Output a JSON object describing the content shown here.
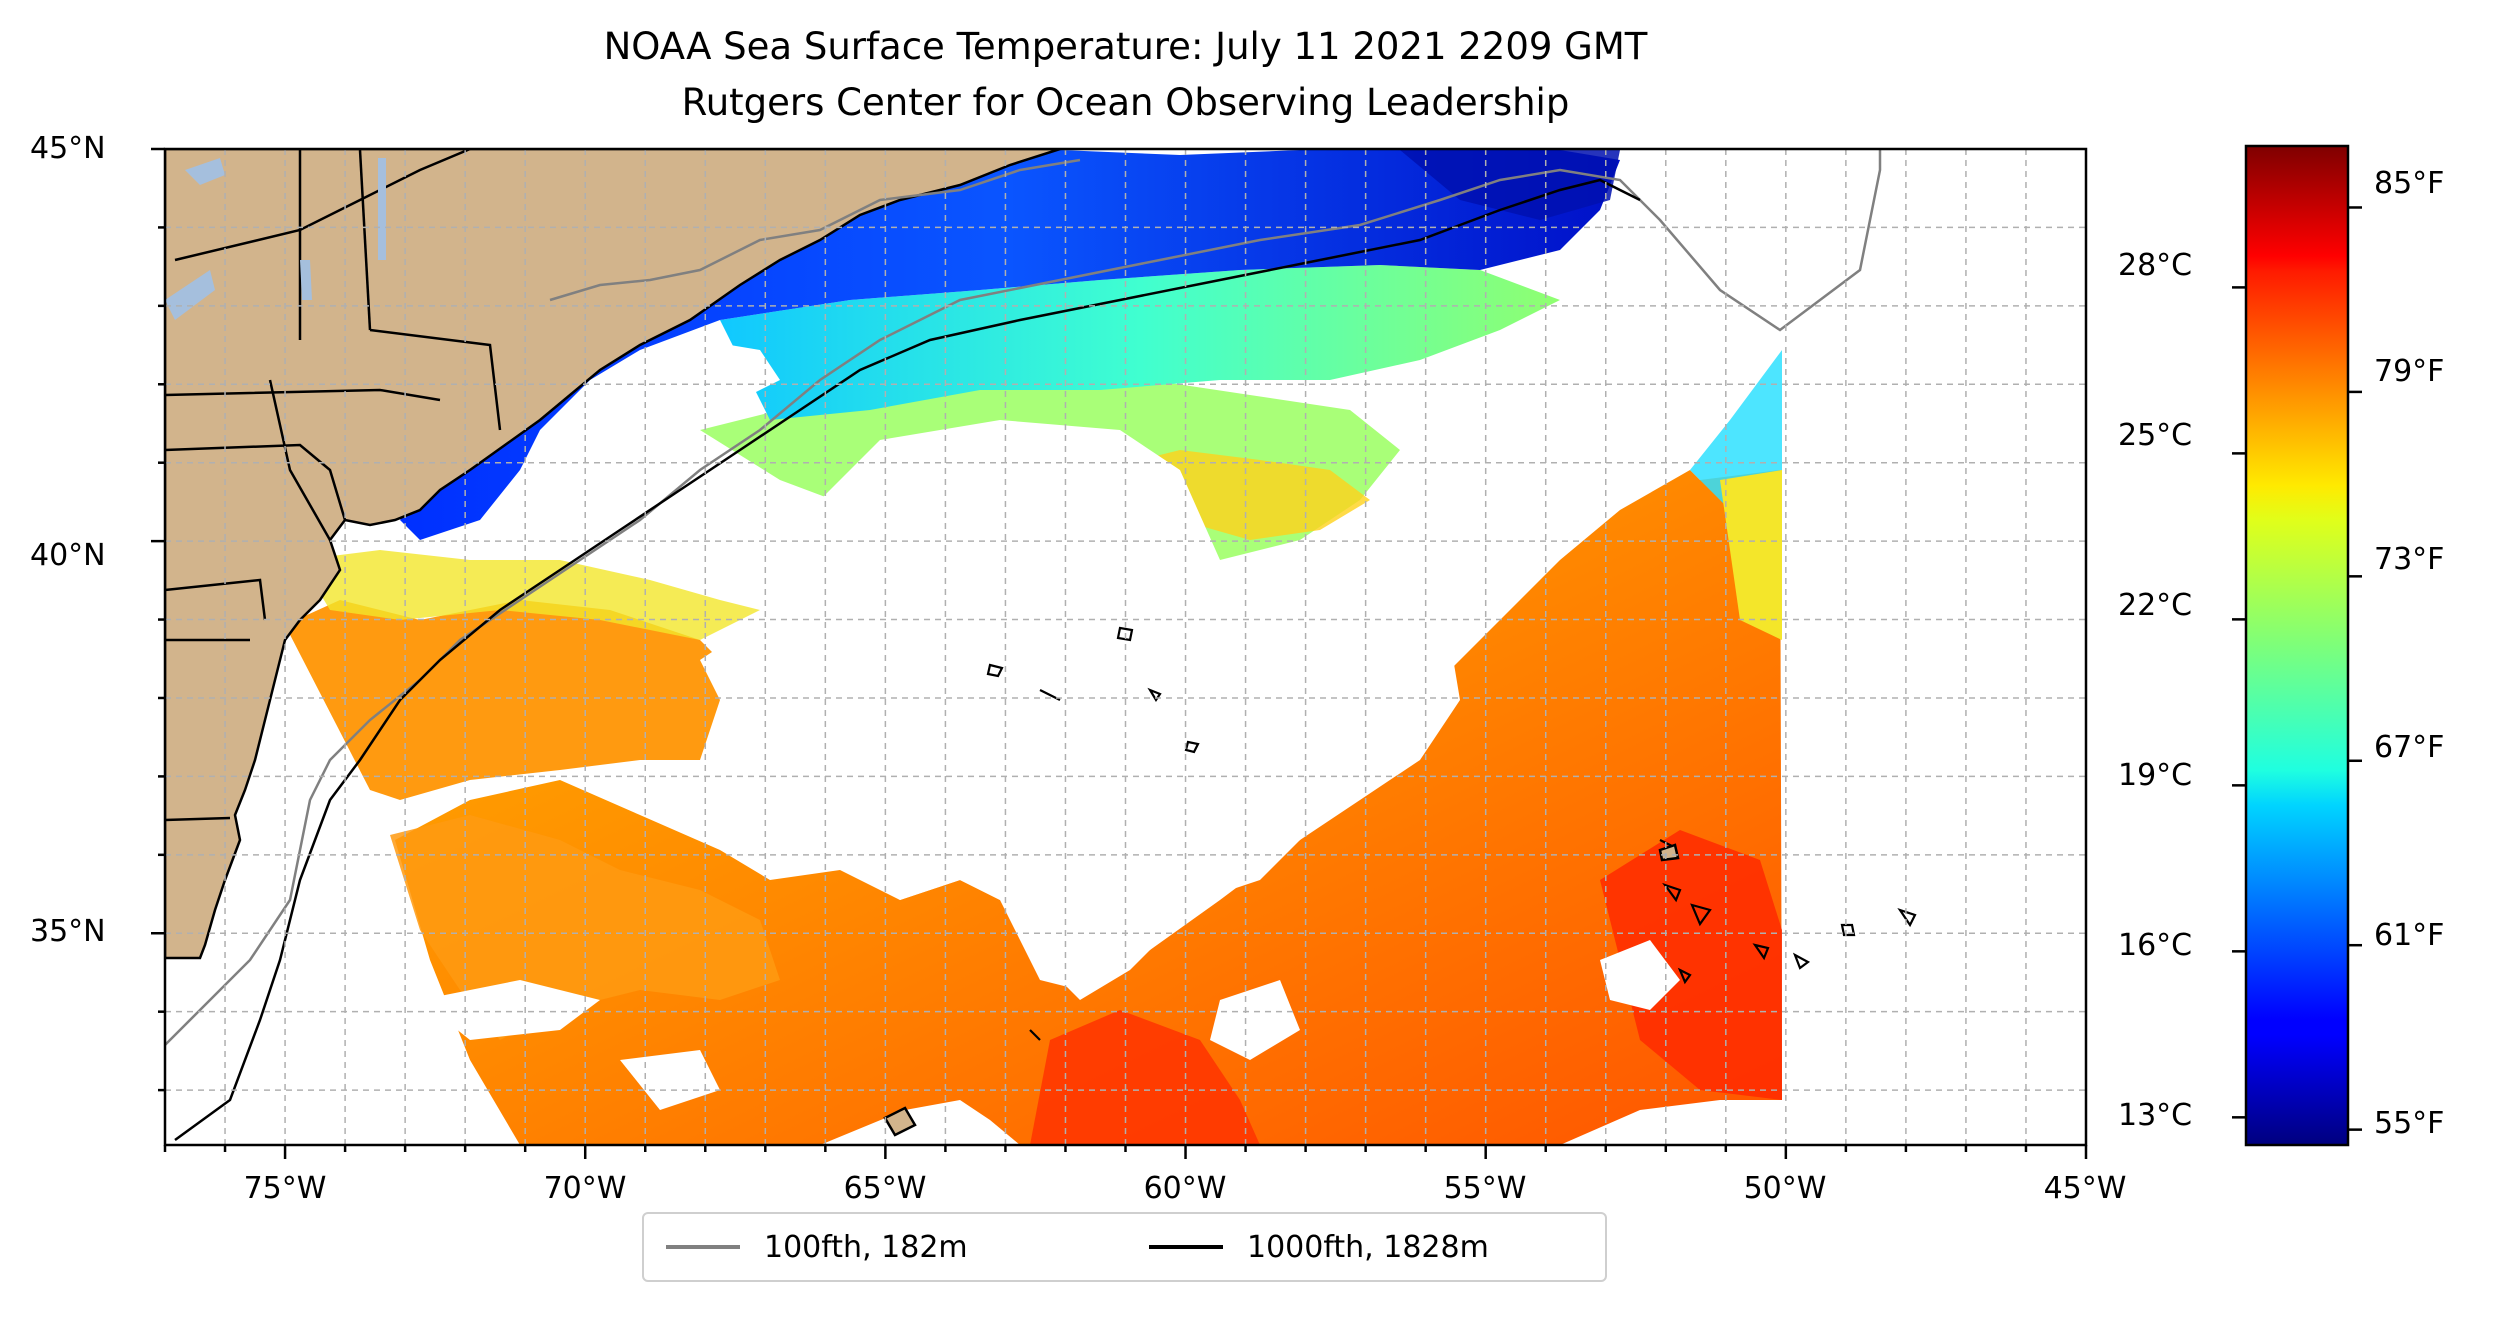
{
  "title": "NOAA Sea Surface Temperature: July 11 2021 2209 GMT",
  "subtitle": "Rutgers Center for Ocean Observing Leadership",
  "map": {
    "lon_range": [
      -77,
      -45
    ],
    "lat_range": [
      32.3,
      45
    ],
    "gridlines": true,
    "land_color": "#d2b48c",
    "lake_color": "#a5bfdd",
    "x_ticks": [
      "75°W",
      "70°W",
      "65°W",
      "60°W",
      "55°W",
      "50°W",
      "45°W"
    ],
    "y_ticks": [
      "45°N",
      "40°N",
      "35°N"
    ]
  },
  "colorbar": {
    "colormap": "jet",
    "celsius_ticks": [
      "28°C",
      "25°C",
      "22°C",
      "19°C",
      "16°C",
      "13°C"
    ],
    "fahrenheit_ticks": [
      "85°F",
      "79°F",
      "73°F",
      "67°F",
      "61°F",
      "55°F"
    ],
    "range_f": [
      54.5,
      87.0
    ]
  },
  "legend": {
    "items": [
      {
        "label": "100fth, 182m",
        "color": "#808080"
      },
      {
        "label": "1000fth, 1828m",
        "color": "#000000"
      }
    ]
  }
}
